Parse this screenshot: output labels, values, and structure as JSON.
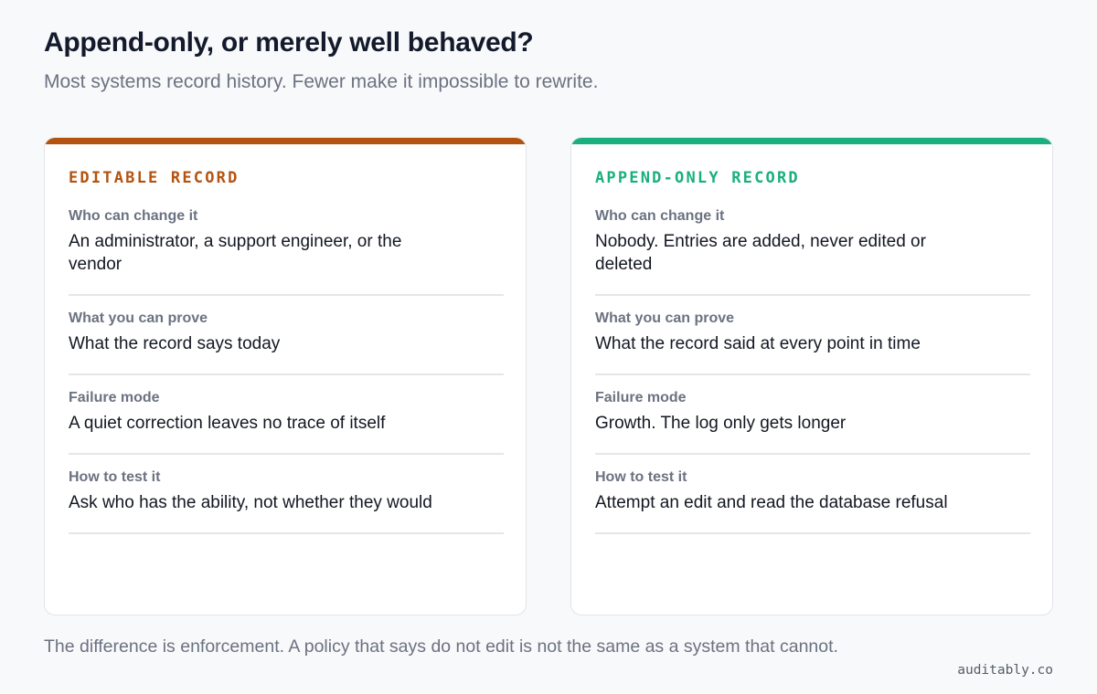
{
  "title": "Append-only, or merely well behaved?",
  "subtitle": "Most systems record history. Fewer make it impossible to rewrite.",
  "cards": [
    {
      "heading": "EDITABLE RECORD",
      "accent": "#b4530f",
      "rows": [
        {
          "label": "Who can change it",
          "value": "An administrator, a support engineer, or the vendor"
        },
        {
          "label": "What you can prove",
          "value": "What the record says today"
        },
        {
          "label": "Failure mode",
          "value": "A quiet correction leaves no trace of itself"
        },
        {
          "label": "How to test it",
          "value": "Ask who has the ability, not whether they would"
        }
      ]
    },
    {
      "heading": "APPEND-ONLY RECORD",
      "accent": "#1aaf7f",
      "rows": [
        {
          "label": "Who can change it",
          "value": "Nobody. Entries are added, never edited or deleted"
        },
        {
          "label": "What you can prove",
          "value": "What the record said at every point in time"
        },
        {
          "label": "Failure mode",
          "value": "Growth. The log only gets longer"
        },
        {
          "label": "How to test it",
          "value": "Attempt an edit and read the database refusal"
        }
      ]
    }
  ],
  "footer": "The difference is enforcement. A policy that says do not edit is not the same as a system that cannot.",
  "brand": "auditably.co"
}
